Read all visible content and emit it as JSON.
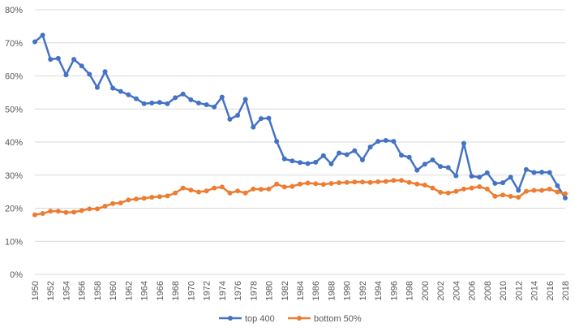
{
  "chart_data": {
    "type": "line",
    "title": "",
    "xlabel": "",
    "ylabel": "",
    "ylim": [
      0,
      80
    ],
    "y_ticks": [
      "0%",
      "10%",
      "20%",
      "30%",
      "40%",
      "50%",
      "60%",
      "70%",
      "80%"
    ],
    "y_unit": "%",
    "grid": "horizontal",
    "legend_position": "bottom",
    "x": [
      1950,
      1951,
      1952,
      1953,
      1954,
      1955,
      1956,
      1957,
      1958,
      1959,
      1960,
      1961,
      1962,
      1963,
      1964,
      1965,
      1966,
      1967,
      1968,
      1969,
      1970,
      1971,
      1972,
      1973,
      1974,
      1975,
      1976,
      1977,
      1978,
      1979,
      1980,
      1981,
      1982,
      1983,
      1984,
      1985,
      1986,
      1987,
      1988,
      1989,
      1990,
      1991,
      1992,
      1993,
      1994,
      1995,
      1996,
      1997,
      1998,
      1999,
      2000,
      2001,
      2002,
      2003,
      2004,
      2005,
      2006,
      2007,
      2008,
      2009,
      2010,
      2011,
      2012,
      2013,
      2014,
      2015,
      2016,
      2017,
      2018
    ],
    "x_tick_labels": [
      "1950",
      "1952",
      "1954",
      "1956",
      "1958",
      "1960",
      "1962",
      "1964",
      "1966",
      "1968",
      "1970",
      "1972",
      "1974",
      "1976",
      "1978",
      "1980",
      "1982",
      "1984",
      "1986",
      "1988",
      "1990",
      "1992",
      "1994",
      "1996",
      "1998",
      "2000",
      "2002",
      "2004",
      "2006",
      "2008",
      "2010",
      "2012",
      "2014",
      "2016",
      "2018"
    ],
    "series": [
      {
        "name": "top 400",
        "color": "#4472C4",
        "values": [
          70.3,
          72.3,
          65,
          65.3,
          60.3,
          65,
          63,
          60.5,
          56.5,
          61.3,
          56.3,
          55.3,
          54.3,
          53.1,
          51.6,
          51.8,
          52,
          51.6,
          53.4,
          54.5,
          52.8,
          51.8,
          51.3,
          50.6,
          53.6,
          46.9,
          48.1,
          52.9,
          44.5,
          47.1,
          47.2,
          40.2,
          34.9,
          34.3,
          33.8,
          33.5,
          33.9,
          35.9,
          33.4,
          36.7,
          36.2,
          37.4,
          34.6,
          38.5,
          40.2,
          40.5,
          40.2,
          36,
          35.4,
          31.5,
          33.3,
          34.6,
          32.6,
          32.3,
          29.8,
          39.6,
          29.7,
          29.4,
          30.7,
          27.5,
          27.7,
          29.4,
          25.4,
          31.7,
          30.8,
          30.9,
          30.8,
          26.8,
          23.1
        ]
      },
      {
        "name": "bottom 50%",
        "color": "#ED7D31",
        "values": [
          18,
          18.4,
          19.1,
          19.1,
          18.7,
          18.8,
          19.3,
          19.8,
          19.8,
          20.6,
          21.4,
          21.6,
          22.5,
          22.8,
          23,
          23.3,
          23.5,
          23.7,
          24.6,
          26.1,
          25.5,
          24.9,
          25.2,
          26.1,
          26.4,
          24.6,
          25.2,
          24.6,
          25.8,
          25.7,
          25.8,
          27.3,
          26.4,
          26.6,
          27.3,
          27.6,
          27.4,
          27.2,
          27.5,
          27.7,
          27.8,
          27.9,
          27.9,
          27.8,
          28,
          28.1,
          28.4,
          28.4,
          27.8,
          27.3,
          27,
          26.1,
          24.8,
          24.6,
          25.1,
          25.8,
          26.1,
          26.5,
          25.8,
          23.6,
          24,
          23.6,
          23.3,
          25.1,
          25.4,
          25.4,
          25.8,
          24.9,
          24.4
        ]
      }
    ]
  }
}
